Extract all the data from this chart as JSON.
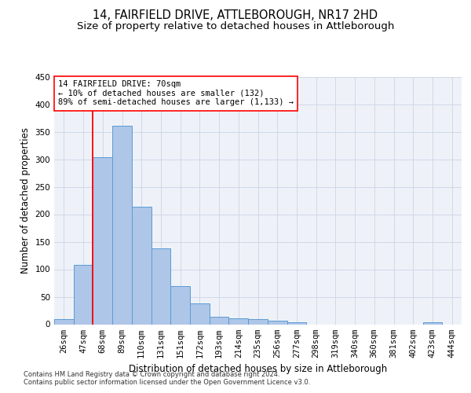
{
  "title": "14, FAIRFIELD DRIVE, ATTLEBOROUGH, NR17 2HD",
  "subtitle": "Size of property relative to detached houses in Attleborough",
  "xlabel": "Distribution of detached houses by size in Attleborough",
  "ylabel": "Number of detached properties",
  "footnote1": "Contains HM Land Registry data © Crown copyright and database right 2024.",
  "footnote2": "Contains public sector information licensed under the Open Government Licence v3.0.",
  "bar_labels": [
    "26sqm",
    "47sqm",
    "68sqm",
    "89sqm",
    "110sqm",
    "131sqm",
    "151sqm",
    "172sqm",
    "193sqm",
    "214sqm",
    "235sqm",
    "256sqm",
    "277sqm",
    "298sqm",
    "319sqm",
    "340sqm",
    "360sqm",
    "381sqm",
    "402sqm",
    "423sqm",
    "444sqm"
  ],
  "bar_values": [
    9,
    108,
    303,
    361,
    213,
    138,
    69,
    38,
    13,
    11,
    10,
    6,
    3,
    0,
    0,
    0,
    0,
    0,
    0,
    4,
    0
  ],
  "bar_color": "#aec6e8",
  "bar_edgecolor": "#5b9bd5",
  "grid_color": "#d0d8e8",
  "background_color": "#eef2f8",
  "ylim": [
    0,
    450
  ],
  "yticks": [
    0,
    50,
    100,
    150,
    200,
    250,
    300,
    350,
    400,
    450
  ],
  "redline_x": 1.5,
  "annotation_text": "14 FAIRFIELD DRIVE: 70sqm\n← 10% of detached houses are smaller (132)\n89% of semi-detached houses are larger (1,133) →",
  "annotation_boxcolor": "white",
  "annotation_bordercolor": "red",
  "title_fontsize": 10.5,
  "subtitle_fontsize": 9.5,
  "ylabel_fontsize": 8.5,
  "xlabel_fontsize": 8.5,
  "tick_fontsize": 7.5,
  "annot_fontsize": 7.5,
  "footnote_fontsize": 6.0
}
